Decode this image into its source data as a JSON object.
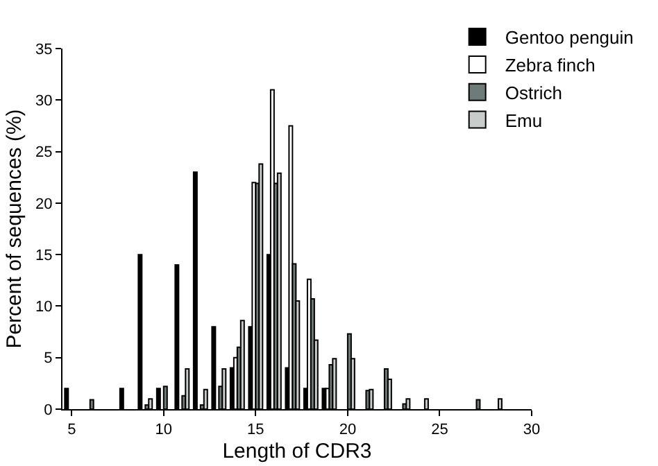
{
  "chart_data": {
    "type": "bar",
    "xlabel": "Length of CDR3",
    "ylabel": "Percent of sequences (%)",
    "x": [
      5,
      6,
      7,
      8,
      9,
      10,
      11,
      12,
      13,
      14,
      15,
      16,
      17,
      18,
      19,
      20,
      21,
      22,
      23,
      24,
      25,
      26,
      27,
      28
    ],
    "series": [
      {
        "name": "Gentoo penguin",
        "color": "#000000",
        "values": [
          2,
          null,
          null,
          2,
          15,
          2,
          14,
          23,
          8,
          4,
          8,
          15,
          4,
          2,
          2,
          null,
          null,
          null,
          null,
          null,
          null,
          null,
          null,
          null
        ]
      },
      {
        "name": "Zebra finch",
        "color": "#ffffff",
        "values": [
          null,
          null,
          null,
          null,
          null,
          null,
          null,
          null,
          null,
          5,
          22,
          31,
          27.5,
          12.6,
          2,
          null,
          null,
          null,
          null,
          null,
          null,
          null,
          null,
          null
        ]
      },
      {
        "name": "Ostrich",
        "color": "#6e7b78",
        "values": [
          null,
          0.9,
          null,
          null,
          0.4,
          2.2,
          1.3,
          0.4,
          2.2,
          6,
          21.9,
          21.9,
          14.1,
          10.7,
          4.3,
          7.3,
          1.8,
          3.9,
          0.5,
          null,
          null,
          null,
          0.9,
          null
        ]
      },
      {
        "name": "Emu",
        "color": "#c8cccb",
        "values": [
          null,
          null,
          null,
          null,
          1,
          null,
          3.9,
          1.9,
          3.9,
          8.6,
          23.8,
          22.9,
          10.5,
          6.7,
          4.9,
          4.9,
          1.9,
          2.9,
          1,
          1,
          null,
          null,
          null,
          1
        ]
      }
    ],
    "xlim": [
      4.5,
      30
    ],
    "xticks": [
      5,
      10,
      15,
      20,
      25,
      30
    ],
    "ylim": [
      0,
      35
    ],
    "yticks": [
      0,
      5,
      10,
      15,
      20,
      25,
      30,
      35
    ],
    "grid": false,
    "legend": "top right"
  }
}
